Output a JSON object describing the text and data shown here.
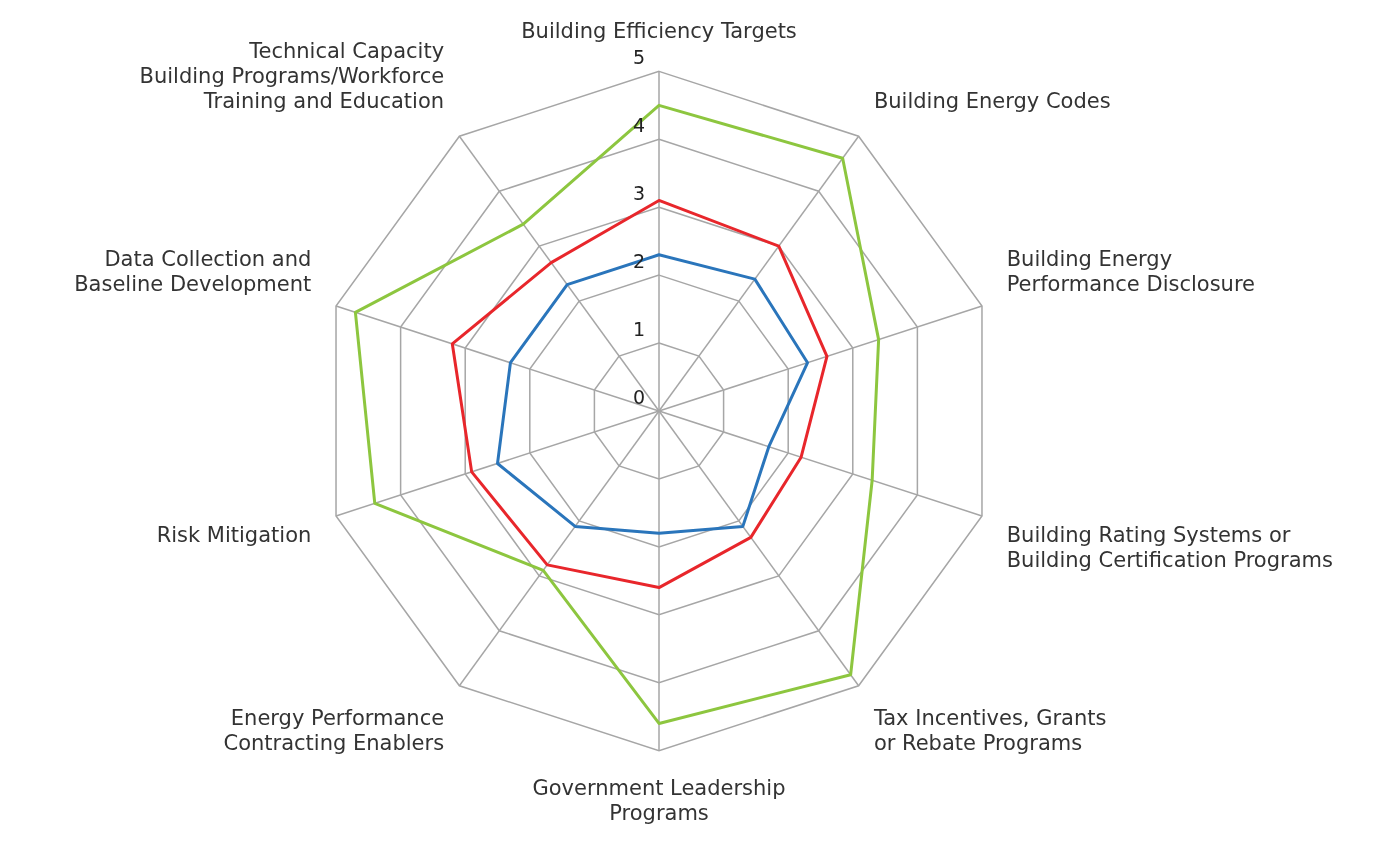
{
  "chart_data": {
    "type": "radar",
    "categories": [
      "Building Efficiency Targets",
      "Building Energy Codes",
      "Building Energy\nPerformance Disclosure",
      "Building Rating Systems or\nBuilding Certification Programs",
      "Tax Incentives, Grants\nor Rebate Programs",
      "Government Leadership\nPrograms",
      "Energy Performance\nContracting Enablers",
      "Risk Mitigation",
      "Data Collection and\nBaseline Development",
      "Technical Capacity\nBuilding Programs/Workforce\nTraining and Education"
    ],
    "series": [
      {
        "color": "#8dc63f",
        "values": [
          4.5,
          4.6,
          3.4,
          3.3,
          4.8,
          4.6,
          2.9,
          4.4,
          4.7,
          3.4
        ]
      },
      {
        "color": "#e8262b",
        "values": [
          3.1,
          3.0,
          2.6,
          2.2,
          2.3,
          2.6,
          2.8,
          2.9,
          3.2,
          2.7
        ]
      },
      {
        "color": "#2a75bb",
        "values": [
          2.3,
          2.4,
          2.3,
          1.7,
          2.1,
          1.8,
          2.1,
          2.5,
          2.3,
          2.3
        ]
      }
    ],
    "ylim": [
      0,
      5
    ],
    "yticks": [
      0,
      1,
      2,
      3,
      4,
      5
    ],
    "grid": true,
    "legend": false,
    "marker": "none"
  }
}
